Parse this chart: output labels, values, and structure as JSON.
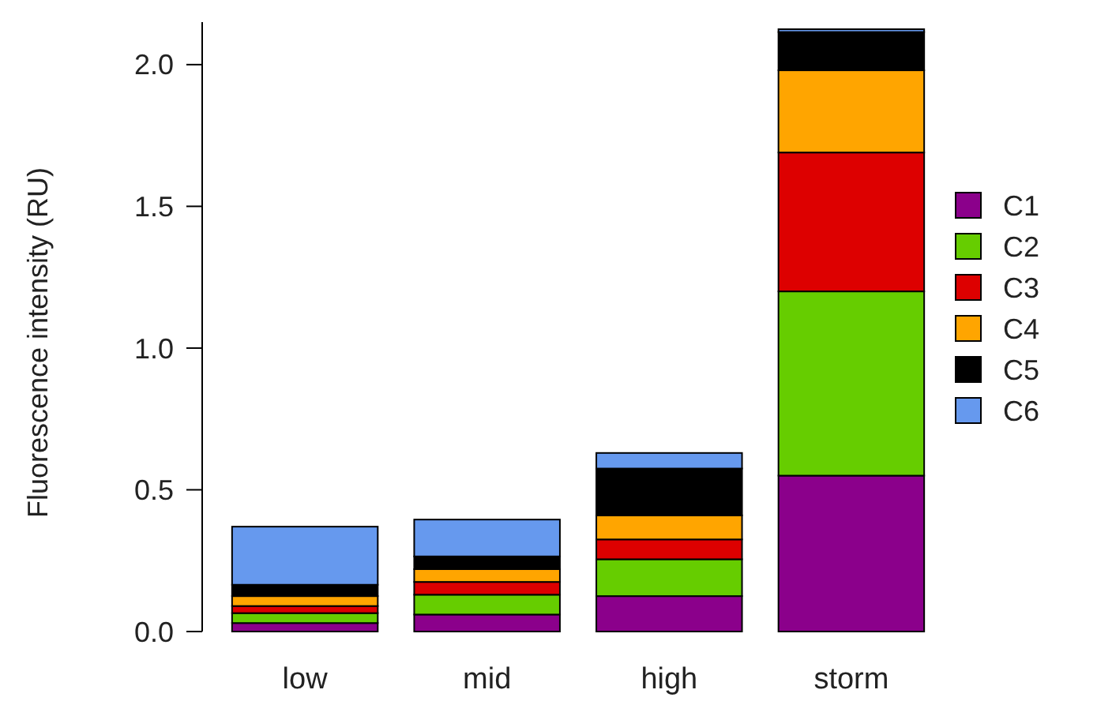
{
  "chart_data": {
    "type": "bar",
    "stacked": true,
    "ylabel": "Fluorescence intensity (RU)",
    "categories": [
      "low",
      "mid",
      "high",
      "storm"
    ],
    "series": [
      {
        "name": "C1",
        "color": "#8b008b",
        "values": [
          0.03,
          0.06,
          0.125,
          0.55
        ]
      },
      {
        "name": "C2",
        "color": "#66cd00",
        "values": [
          0.035,
          0.07,
          0.13,
          0.65
        ]
      },
      {
        "name": "C3",
        "color": "#dd0000",
        "values": [
          0.025,
          0.045,
          0.07,
          0.49
        ]
      },
      {
        "name": "C4",
        "color": "#ffa500",
        "values": [
          0.035,
          0.045,
          0.085,
          0.29
        ]
      },
      {
        "name": "C5",
        "color": "#000000",
        "values": [
          0.04,
          0.045,
          0.165,
          0.135
        ]
      },
      {
        "name": "C6",
        "color": "#6699ee",
        "values": [
          0.205,
          0.13,
          0.055,
          0.01
        ]
      }
    ],
    "ylim": [
      0,
      2.15
    ],
    "yticks": [
      {
        "value": 0,
        "label": "0.0"
      },
      {
        "value": 0.5,
        "label": "0.5"
      },
      {
        "value": 1,
        "label": "1.0"
      },
      {
        "value": 1.5,
        "label": "1.5"
      },
      {
        "value": 2,
        "label": "2.0"
      }
    ],
    "grid": false,
    "legend": "right"
  }
}
